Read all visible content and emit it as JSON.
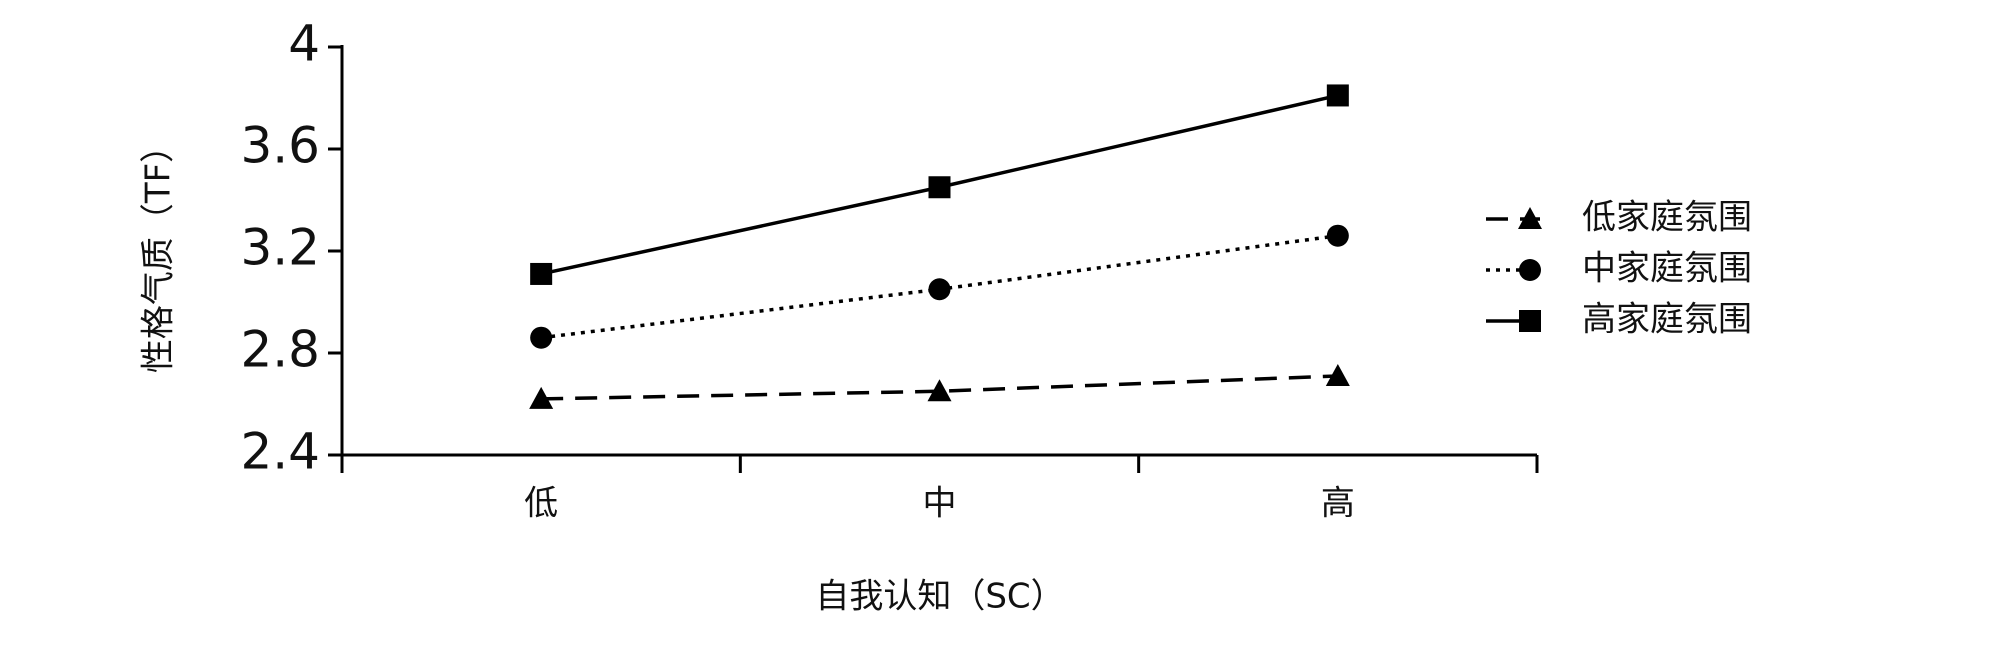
{
  "chart_data": {
    "type": "line",
    "categories": [
      "低",
      "中",
      "高"
    ],
    "x_label": "自我认知（SC）",
    "y_label": "性格气质（TF）",
    "ylim": [
      2.4,
      4
    ],
    "yticks": [
      2.4,
      2.8,
      3.2,
      3.6,
      4
    ],
    "legend": "right",
    "series": [
      {
        "name": "低家庭氛围",
        "color": "#000000",
        "dash": "dashed",
        "marker": "triangle",
        "values": [
          2.62,
          2.65,
          2.71
        ]
      },
      {
        "name": "中家庭氛围",
        "color": "#000000",
        "dash": "dotted",
        "marker": "circle",
        "values": [
          2.86,
          3.05,
          3.26
        ]
      },
      {
        "name": "高家庭氛围",
        "color": "#000000",
        "dash": "solid",
        "marker": "square",
        "values": [
          3.11,
          3.45,
          3.81
        ]
      }
    ]
  }
}
